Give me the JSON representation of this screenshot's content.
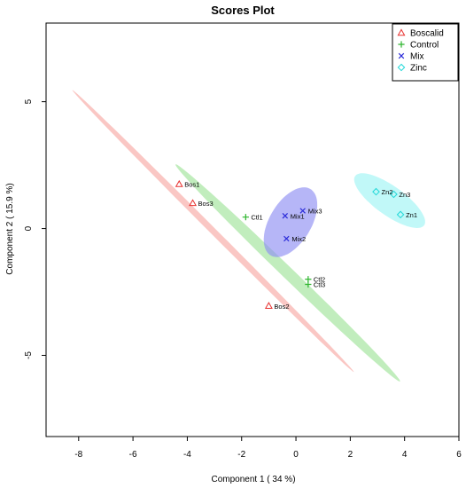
{
  "chart_data": {
    "type": "scatter",
    "title": "Scores Plot",
    "xlabel": "Component 1 ( 34 %)",
    "ylabel": "Component 2 ( 15.9 %)",
    "xlim": [
      -9.2,
      6.0
    ],
    "ylim": [
      -8.2,
      8.1
    ],
    "xticks": [
      -8,
      -6,
      -4,
      -2,
      0,
      2,
      4,
      6
    ],
    "yticks": [
      -5,
      0,
      5
    ],
    "legend_position": "top-right",
    "series": [
      {
        "name": "Boscalid",
        "color": "#e8312f",
        "marker": "triangle",
        "points": [
          {
            "label": "Bos1",
            "x": -4.3,
            "y": 1.75
          },
          {
            "label": "Bos3",
            "x": -3.8,
            "y": 1.0
          },
          {
            "label": "Bos2",
            "x": -1.0,
            "y": -3.05
          }
        ],
        "ellipse": {
          "cx": -3.05,
          "cy": -0.1,
          "rx": 7.6,
          "ry": 0.12,
          "angle_deg": -47,
          "fill": "#f7a9a5"
        }
      },
      {
        "name": "Control",
        "color": "#2db52d",
        "marker": "plus",
        "points": [
          {
            "label": "Ctl1",
            "x": -1.85,
            "y": 0.45
          },
          {
            "label": "Ctl2",
            "x": 0.45,
            "y": -2.0
          },
          {
            "label": "Ctl3",
            "x": 0.45,
            "y": -2.2
          }
        ],
        "ellipse": {
          "cx": -0.3,
          "cy": -1.75,
          "rx": 5.95,
          "ry": 0.22,
          "angle_deg": -46,
          "fill": "#9fe39a"
        }
      },
      {
        "name": "Mix",
        "color": "#2b2bd9",
        "marker": "cross",
        "points": [
          {
            "label": "Mix1",
            "x": -0.4,
            "y": 0.5
          },
          {
            "label": "Mix3",
            "x": 0.25,
            "y": 0.7
          },
          {
            "label": "Mix2",
            "x": -0.35,
            "y": -0.4
          }
        ],
        "ellipse": {
          "cx": -0.2,
          "cy": 0.25,
          "rx": 1.5,
          "ry": 0.78,
          "angle_deg": 62,
          "fill": "#8f8ff2"
        }
      },
      {
        "name": "Zinc",
        "color": "#20d8d8",
        "marker": "diamond",
        "points": [
          {
            "label": "Zn2",
            "x": 2.95,
            "y": 1.45
          },
          {
            "label": "Zn3",
            "x": 3.6,
            "y": 1.35
          },
          {
            "label": "Zn1",
            "x": 3.85,
            "y": 0.55
          }
        ],
        "ellipse": {
          "cx": 3.45,
          "cy": 1.1,
          "rx": 1.6,
          "ry": 0.56,
          "angle_deg": -38,
          "fill": "#9ff5f5"
        }
      }
    ]
  }
}
